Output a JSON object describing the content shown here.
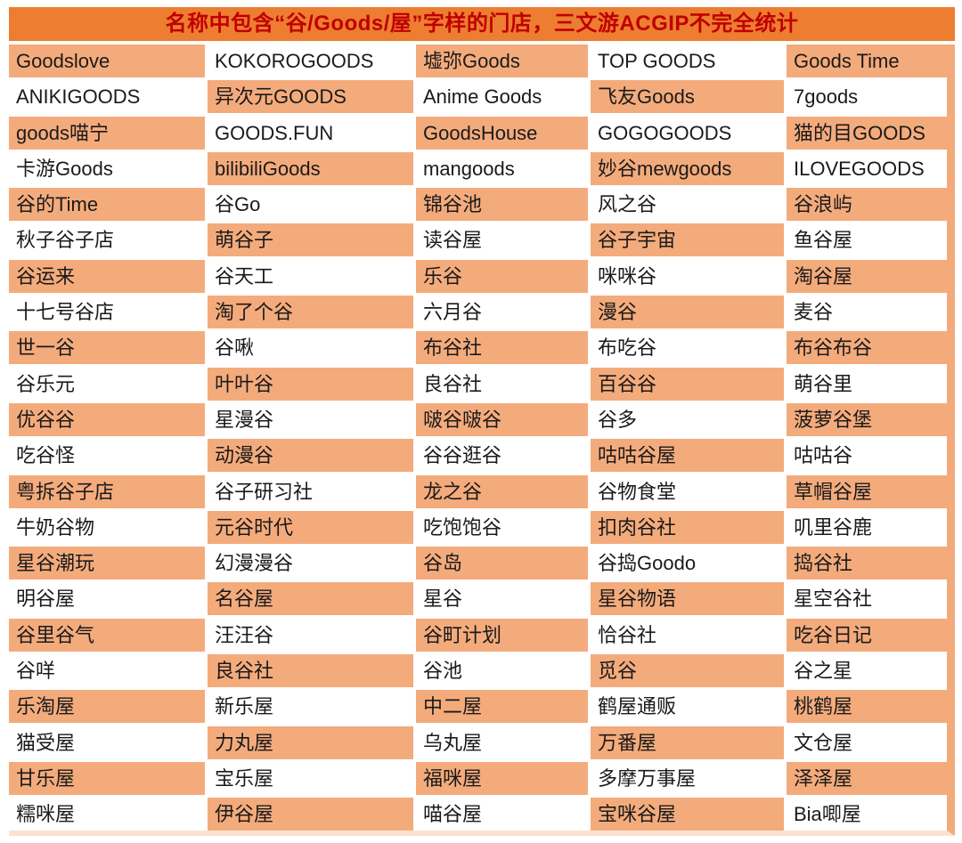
{
  "chart_data": {
    "type": "table",
    "title": "名称中包含“谷/Goods/屋”字样的门店，三文游ACGIP不完全统计",
    "columns": 5,
    "row_count": 22,
    "cell_pattern": "checkerboard-orange-white, top-left cell orange",
    "rows": [
      [
        "Goodslove",
        "KOKOROGOODS",
        "墟弥Goods",
        "TOP GOODS",
        "Goods Time"
      ],
      [
        "ANIKIGOODS",
        "异次元GOODS",
        "Anime Goods",
        "飞友Goods",
        "7goods"
      ],
      [
        "goods喵宁",
        "GOODS.FUN",
        "GoodsHouse",
        "GOGOGOODS",
        "猫的目GOODS"
      ],
      [
        "卡游Goods",
        "bilibiliGoods",
        "mangoods",
        "妙谷mewgoods",
        "ILOVEGOODS"
      ],
      [
        "谷的Time",
        "谷Go",
        "锦谷池",
        "风之谷",
        "谷浪屿"
      ],
      [
        "秋子谷子店",
        "萌谷子",
        "读谷屋",
        "谷子宇宙",
        "鱼谷屋"
      ],
      [
        "谷运来",
        "谷天工",
        "乐谷",
        "咪咪谷",
        "淘谷屋"
      ],
      [
        "十七号谷店",
        "淘了个谷",
        "六月谷",
        "漫谷",
        "麦谷"
      ],
      [
        "世一谷",
        "谷啾",
        "布谷社",
        "布吃谷",
        "布谷布谷"
      ],
      [
        "谷乐元",
        "叶叶谷",
        "良谷社",
        "百谷谷",
        "萌谷里"
      ],
      [
        "优谷谷",
        "星漫谷",
        "啵谷啵谷",
        "谷多",
        "菠萝谷堡"
      ],
      [
        "吃谷怪",
        "动漫谷",
        "谷谷逛谷",
        "咕咕谷屋",
        "咕咕谷"
      ],
      [
        "粤拆谷子店",
        "谷子研习社",
        "龙之谷",
        "谷物食堂",
        "草帽谷屋"
      ],
      [
        "牛奶谷物",
        "元谷时代",
        "吃饱饱谷",
        "扣肉谷社",
        "叽里谷鹿"
      ],
      [
        "星谷潮玩",
        "幻漫漫谷",
        "谷岛",
        "谷捣Goodo",
        "捣谷社"
      ],
      [
        "明谷屋",
        "名谷屋",
        "星谷",
        "星谷物语",
        "星空谷社"
      ],
      [
        "谷里谷气",
        "汪汪谷",
        "谷町计划",
        "恰谷社",
        "吃谷日记"
      ],
      [
        "谷咩",
        "良谷社",
        "谷池",
        "觅谷",
        "谷之星"
      ],
      [
        "乐淘屋",
        "新乐屋",
        "中二屋",
        "鹤屋通贩",
        "桃鹤屋"
      ],
      [
        "猫受屋",
        "力丸屋",
        "乌丸屋",
        "万番屋",
        "文仓屋"
      ],
      [
        "甘乐屋",
        "宝乐屋",
        "福咪屋",
        "多摩万事屋",
        "泽泽屋"
      ],
      [
        "糯咪屋",
        "伊谷屋",
        "喵谷屋",
        "宝咪谷屋",
        "Bia唧屋"
      ]
    ]
  },
  "colors": {
    "header_bg": "#ed7d31",
    "header_text": "#c00000",
    "cell_orange": "#f4ab7c",
    "cell_white": "#ffffff",
    "cell_text": "#1a1a1a",
    "right_strip": "#f4ab7c",
    "bottom_strip": "#fbe2d0",
    "page_bg": "#ffffff"
  }
}
